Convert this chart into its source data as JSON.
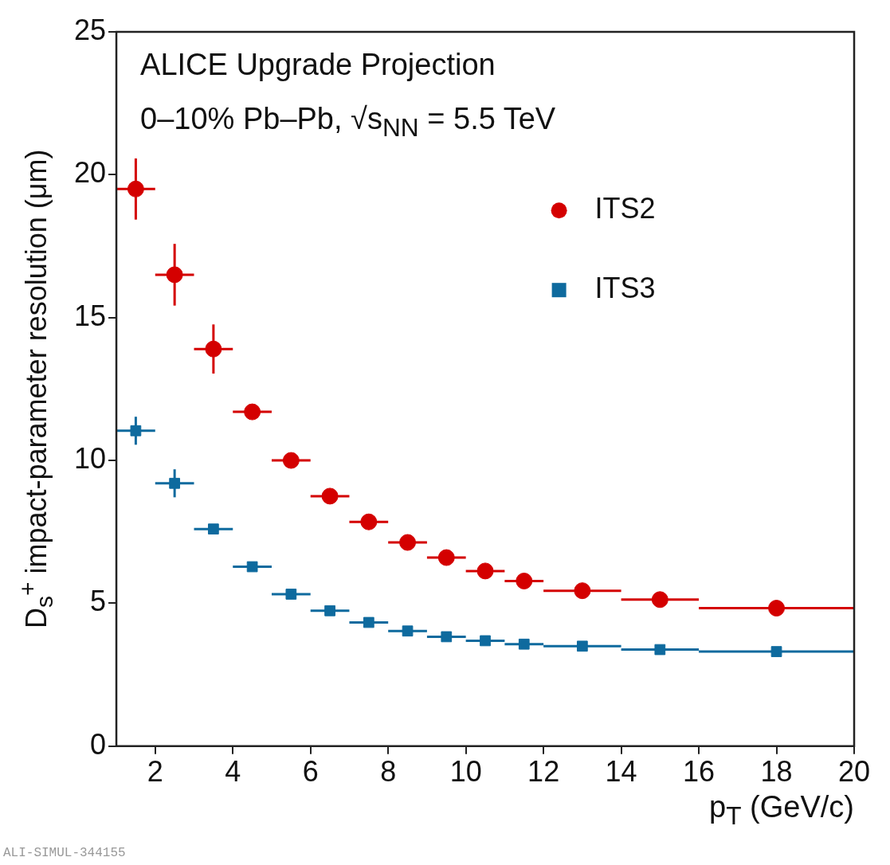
{
  "chart_data": {
    "type": "scatter",
    "xlabel": "p$_{T}$ (GeV/c)",
    "ylabel": "D$_{s}$$^{+}$ impact-parameter resolution (μm)",
    "annotations": [
      "ALICE Upgrade Projection",
      "0–10% Pb–Pb, √s$_{NN}$ = 5.5 TeV",
      "ALI-SIMUL-344155"
    ],
    "x": [
      1.5,
      2.5,
      3.5,
      4.5,
      5.5,
      6.5,
      7.5,
      8.5,
      9.5,
      10.5,
      11.5,
      13,
      15,
      18
    ],
    "series": [
      {
        "name": "ITS2",
        "color": "#d40000",
        "marker": "circle",
        "values": [
          19.5,
          16.5,
          13.9,
          11.7,
          10.0,
          8.75,
          7.85,
          7.13,
          6.6,
          6.13,
          5.78,
          5.44,
          5.13,
          4.83
        ],
        "errors": [
          1.07,
          1.08,
          0.86,
          null,
          null,
          null,
          null,
          null,
          null,
          null,
          null,
          null,
          null,
          null
        ],
        "xerrors": [
          0.5,
          0.5,
          0.5,
          0.5,
          0.5,
          0.5,
          0.5,
          0.5,
          0.5,
          0.5,
          0.5,
          1,
          1,
          2
        ]
      },
      {
        "name": "ITS3",
        "color": "#0e6a9e",
        "marker": "square",
        "values": [
          11.04,
          9.2,
          7.6,
          6.28,
          5.32,
          4.74,
          4.33,
          4.03,
          3.83,
          3.69,
          3.57,
          3.5,
          3.38,
          3.31
        ],
        "errors": [
          0.49,
          0.49,
          null,
          null,
          null,
          null,
          null,
          null,
          null,
          null,
          null,
          null,
          null,
          null
        ],
        "xerrors": [
          0.5,
          0.5,
          0.5,
          0.5,
          0.5,
          0.5,
          0.5,
          0.5,
          0.5,
          0.5,
          0.5,
          1,
          1,
          2
        ]
      }
    ],
    "xlim": [
      1,
      20
    ],
    "xticks": [
      2,
      4,
      6,
      8,
      10,
      12,
      14,
      16,
      18,
      20
    ],
    "ylim": [
      0,
      25
    ],
    "yticks": [
      0,
      5,
      10,
      15,
      20,
      25
    ],
    "grid": false,
    "legend": "top right"
  }
}
